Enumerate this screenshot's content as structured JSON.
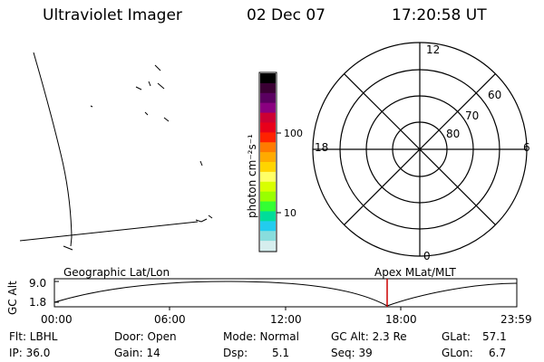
{
  "header": {
    "instrument": "Ultraviolet Imager",
    "date": "02 Dec 07",
    "time": "17:20:58 UT"
  },
  "colorbar": {
    "unit_label": "photon cm⁻²s⁻¹",
    "tick_labels": [
      "100",
      "10"
    ],
    "colors": [
      "#000000",
      "#3a0033",
      "#5a0060",
      "#8a0080",
      "#cc0033",
      "#e8001a",
      "#ff2200",
      "#ff7a00",
      "#ffaa00",
      "#ffd400",
      "#ffff66",
      "#d8ff00",
      "#99ff00",
      "#33ff33",
      "#00dd99",
      "#22ccee",
      "#88dddd",
      "#d6eeee"
    ]
  },
  "polar_plot": {
    "mlt_labels": {
      "top": "12",
      "bottom": "0",
      "left": "18",
      "right": "6"
    },
    "lat_labels": [
      "60",
      "70",
      "80"
    ]
  },
  "timeline": {
    "y_axis_label": "GC Alt",
    "y_ticks": [
      "9.0",
      "1.8"
    ],
    "left_caption": "Geographic Lat/Lon",
    "right_caption": "Apex  MLat/MLT",
    "time_labels": [
      "00:00",
      "06:00",
      "12:00",
      "18:00",
      "23:59"
    ],
    "current_marker_color": "#cc0000"
  },
  "status": {
    "flt_label": "Flt: LBHL",
    "ip_label": "IP: 36.0",
    "door_label": "Door: Open",
    "gain_label": "Gain: 14",
    "mode_label": "Mode: Normal",
    "dsp_label": "Dsp:",
    "dsp_value": "5.1",
    "gcalt_label": "GC Alt: 2.3 Re",
    "seq_label": "Seq: 39",
    "glat_label": "GLat:",
    "glat_value": "57.1",
    "glon_label": "GLon:",
    "glon_value": "6.7"
  }
}
